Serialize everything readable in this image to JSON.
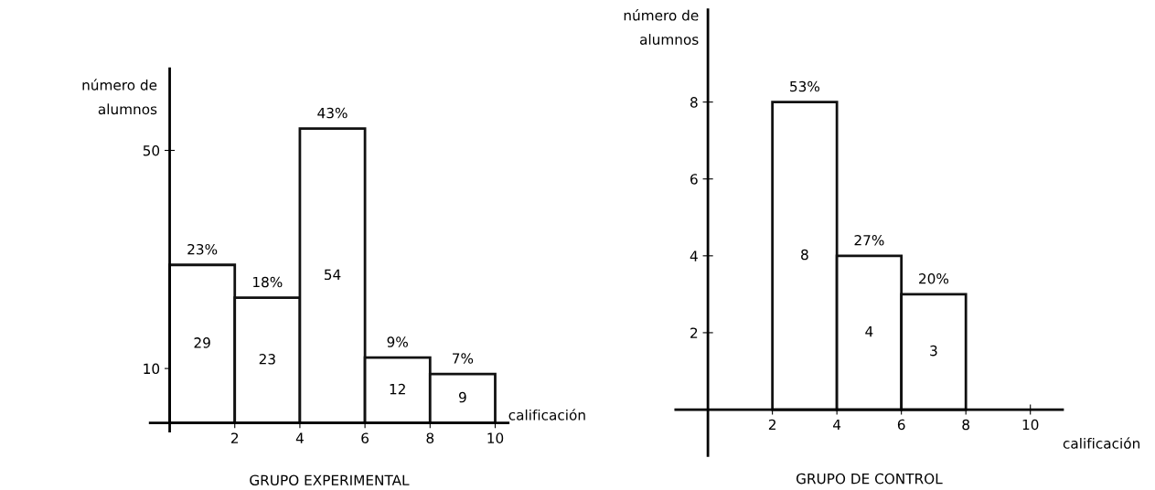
{
  "chart_data": [
    {
      "type": "histogram",
      "title": "GRUPO EXPERIMENTAL",
      "xlabel": "calificación",
      "ylabel": "número de\nalumnos",
      "bins": [
        0,
        2,
        4,
        6,
        8,
        10
      ],
      "values": [
        29,
        23,
        54,
        12,
        9
      ],
      "color": "#ffffff",
      "data_labels": true,
      "xlim": [
        -0.6,
        10.4
      ],
      "ylim": [
        -1.5,
        65
      ],
      "xticks": [
        2,
        4,
        6,
        8,
        10
      ],
      "yticks": [
        10,
        50
      ],
      "grid": false,
      "annotations": [
        {
          "text": "23%",
          "x": 1,
          "y": 29
        },
        {
          "text": "18%",
          "x": 3,
          "y": 23
        },
        {
          "text": "43%",
          "x": 5,
          "y": 54
        },
        {
          "text": "9%",
          "x": 7,
          "y": 12
        },
        {
          "text": "7%",
          "x": 9,
          "y": 9
        }
      ]
    },
    {
      "type": "histogram",
      "title": "GRUPO DE CONTROL",
      "xlabel": "calificación",
      "ylabel": "número de\nalumnos",
      "bins": [
        2,
        4,
        6,
        8
      ],
      "values": [
        8,
        4,
        3
      ],
      "color": "#ffffff",
      "data_labels": true,
      "xlim": [
        -1,
        11
      ],
      "ylim": [
        -1.2,
        10.4
      ],
      "xticks": [
        2,
        4,
        6,
        8,
        10
      ],
      "yticks": [
        2,
        4,
        6,
        8
      ],
      "grid": false,
      "annotations": [
        {
          "text": "53%",
          "x": 3,
          "y": 8
        },
        {
          "text": "27%",
          "x": 5,
          "y": 4
        },
        {
          "text": "20%",
          "x": 7,
          "y": 3
        }
      ]
    }
  ]
}
